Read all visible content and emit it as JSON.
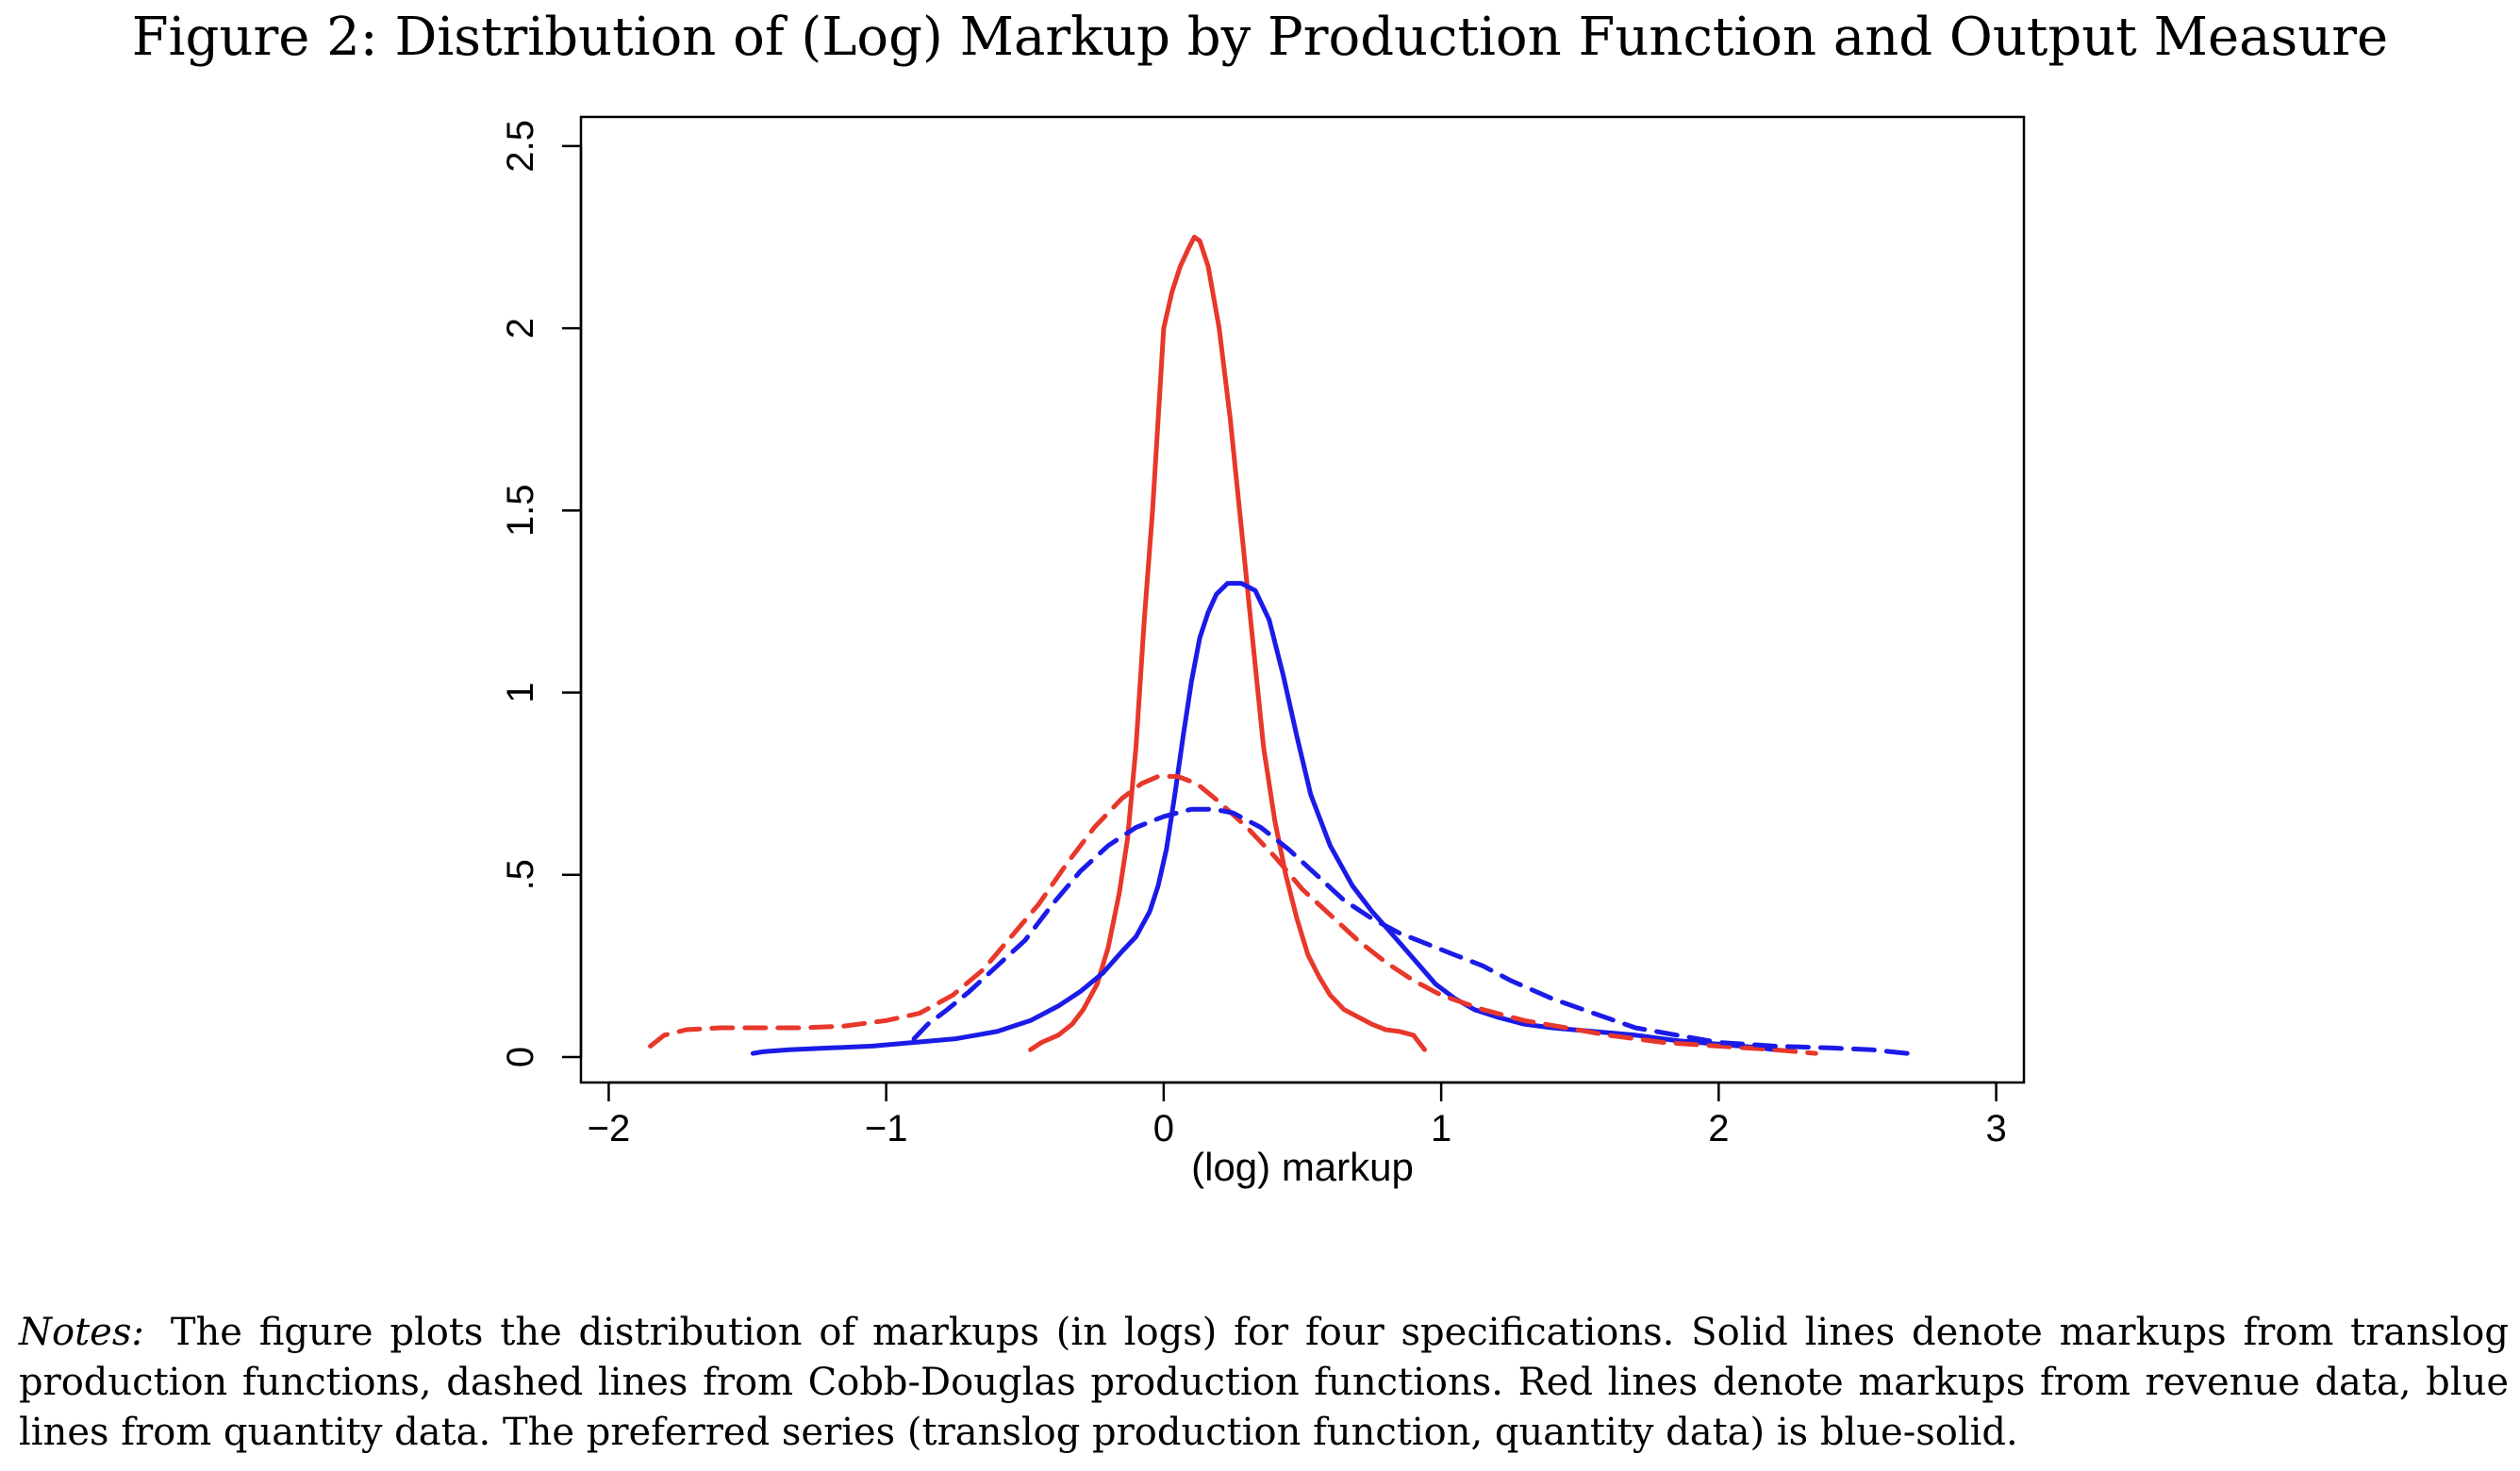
{
  "figure": {
    "title": "Figure 2: Distribution of (Log) Markup by Production Function and Output Measure",
    "notes_label": "Notes:",
    "notes_text": "The figure plots the distribution of markups (in logs) for four specifications. Solid lines denote markups from translog production functions, dashed lines from Cobb-Douglas production functions. Red lines denote markups from revenue data, blue lines from quantity data. The preferred series (translog production function, quantity data) is blue-solid."
  },
  "chart_data": {
    "type": "line",
    "title": "Figure 2: Distribution of (Log) Markup by Production Function and Output Measure",
    "xlabel": "(log) markup",
    "ylabel": "",
    "xlim": [
      -2.1,
      3.1
    ],
    "ylim": [
      -0.07,
      2.58
    ],
    "x_ticks": [
      -2,
      -1,
      0,
      1,
      2,
      3
    ],
    "x_tick_labels": [
      "−2",
      "−1",
      "0",
      "1",
      "2",
      "3"
    ],
    "y_ticks": [
      0,
      0.5,
      1,
      1.5,
      2,
      2.5
    ],
    "y_tick_labels": [
      "0",
      ".5",
      "1",
      "1.5",
      "2",
      "2.5"
    ],
    "grid": false,
    "legend": "none",
    "series": [
      {
        "color": "#e8372b",
        "style": "solid",
        "points": [
          [
            -0.48,
            0.02
          ],
          [
            -0.44,
            0.04
          ],
          [
            -0.38,
            0.06
          ],
          [
            -0.33,
            0.09
          ],
          [
            -0.29,
            0.13
          ],
          [
            -0.24,
            0.2
          ],
          [
            -0.2,
            0.3
          ],
          [
            -0.16,
            0.45
          ],
          [
            -0.13,
            0.6
          ],
          [
            -0.1,
            0.85
          ],
          [
            -0.07,
            1.2
          ],
          [
            -0.04,
            1.5
          ],
          [
            -0.02,
            1.75
          ],
          [
            0.0,
            2.0
          ],
          [
            0.03,
            2.1
          ],
          [
            0.06,
            2.17
          ],
          [
            0.09,
            2.22
          ],
          [
            0.11,
            2.25
          ],
          [
            0.13,
            2.24
          ],
          [
            0.16,
            2.17
          ],
          [
            0.2,
            2.0
          ],
          [
            0.24,
            1.75
          ],
          [
            0.28,
            1.45
          ],
          [
            0.32,
            1.15
          ],
          [
            0.36,
            0.85
          ],
          [
            0.4,
            0.65
          ],
          [
            0.44,
            0.5
          ],
          [
            0.48,
            0.38
          ],
          [
            0.52,
            0.28
          ],
          [
            0.56,
            0.22
          ],
          [
            0.6,
            0.17
          ],
          [
            0.65,
            0.13
          ],
          [
            0.7,
            0.11
          ],
          [
            0.75,
            0.09
          ],
          [
            0.8,
            0.075
          ],
          [
            0.85,
            0.07
          ],
          [
            0.9,
            0.06
          ],
          [
            0.92,
            0.04
          ],
          [
            0.94,
            0.02
          ]
        ]
      },
      {
        "color": "#1b1be8",
        "style": "solid",
        "points": [
          [
            -1.48,
            0.01
          ],
          [
            -1.44,
            0.015
          ],
          [
            -1.35,
            0.02
          ],
          [
            -1.2,
            0.025
          ],
          [
            -1.05,
            0.03
          ],
          [
            -0.9,
            0.04
          ],
          [
            -0.75,
            0.05
          ],
          [
            -0.6,
            0.07
          ],
          [
            -0.48,
            0.1
          ],
          [
            -0.38,
            0.14
          ],
          [
            -0.3,
            0.18
          ],
          [
            -0.22,
            0.23
          ],
          [
            -0.15,
            0.29
          ],
          [
            -0.1,
            0.33
          ],
          [
            -0.05,
            0.4
          ],
          [
            -0.02,
            0.47
          ],
          [
            0.01,
            0.57
          ],
          [
            0.04,
            0.72
          ],
          [
            0.07,
            0.88
          ],
          [
            0.1,
            1.03
          ],
          [
            0.13,
            1.15
          ],
          [
            0.16,
            1.22
          ],
          [
            0.19,
            1.27
          ],
          [
            0.23,
            1.3
          ],
          [
            0.28,
            1.3
          ],
          [
            0.33,
            1.28
          ],
          [
            0.38,
            1.2
          ],
          [
            0.43,
            1.05
          ],
          [
            0.48,
            0.88
          ],
          [
            0.53,
            0.72
          ],
          [
            0.6,
            0.58
          ],
          [
            0.68,
            0.47
          ],
          [
            0.75,
            0.4
          ],
          [
            0.82,
            0.34
          ],
          [
            0.9,
            0.27
          ],
          [
            0.98,
            0.2
          ],
          [
            1.05,
            0.16
          ],
          [
            1.12,
            0.13
          ],
          [
            1.2,
            0.11
          ],
          [
            1.3,
            0.09
          ],
          [
            1.4,
            0.08
          ],
          [
            1.55,
            0.07
          ],
          [
            1.7,
            0.06
          ],
          [
            1.85,
            0.045
          ],
          [
            2.0,
            0.035
          ],
          [
            2.15,
            0.025
          ],
          [
            2.2,
            0.02
          ]
        ]
      },
      {
        "color": "#e8372b",
        "style": "dashed",
        "points": [
          [
            -1.85,
            0.03
          ],
          [
            -1.8,
            0.06
          ],
          [
            -1.72,
            0.075
          ],
          [
            -1.6,
            0.08
          ],
          [
            -1.45,
            0.08
          ],
          [
            -1.3,
            0.08
          ],
          [
            -1.15,
            0.085
          ],
          [
            -1.0,
            0.1
          ],
          [
            -0.88,
            0.12
          ],
          [
            -0.76,
            0.17
          ],
          [
            -0.65,
            0.24
          ],
          [
            -0.55,
            0.33
          ],
          [
            -0.45,
            0.42
          ],
          [
            -0.35,
            0.53
          ],
          [
            -0.25,
            0.63
          ],
          [
            -0.15,
            0.71
          ],
          [
            -0.08,
            0.75
          ],
          [
            -0.02,
            0.77
          ],
          [
            0.05,
            0.77
          ],
          [
            0.12,
            0.75
          ],
          [
            0.2,
            0.7
          ],
          [
            0.3,
            0.63
          ],
          [
            0.4,
            0.55
          ],
          [
            0.5,
            0.46
          ],
          [
            0.6,
            0.39
          ],
          [
            0.7,
            0.32
          ],
          [
            0.8,
            0.26
          ],
          [
            0.9,
            0.21
          ],
          [
            1.0,
            0.17
          ],
          [
            1.15,
            0.13
          ],
          [
            1.3,
            0.1
          ],
          [
            1.45,
            0.08
          ],
          [
            1.6,
            0.06
          ],
          [
            1.8,
            0.04
          ],
          [
            2.0,
            0.03
          ],
          [
            2.2,
            0.02
          ],
          [
            2.35,
            0.01
          ]
        ]
      },
      {
        "color": "#1b1be8",
        "style": "dashed",
        "points": [
          [
            -0.9,
            0.05
          ],
          [
            -0.85,
            0.09
          ],
          [
            -0.78,
            0.13
          ],
          [
            -0.7,
            0.18
          ],
          [
            -0.6,
            0.25
          ],
          [
            -0.5,
            0.32
          ],
          [
            -0.4,
            0.42
          ],
          [
            -0.3,
            0.51
          ],
          [
            -0.2,
            0.58
          ],
          [
            -0.1,
            0.63
          ],
          [
            0.0,
            0.66
          ],
          [
            0.1,
            0.68
          ],
          [
            0.18,
            0.68
          ],
          [
            0.25,
            0.67
          ],
          [
            0.35,
            0.63
          ],
          [
            0.45,
            0.57
          ],
          [
            0.55,
            0.5
          ],
          [
            0.65,
            0.43
          ],
          [
            0.75,
            0.38
          ],
          [
            0.85,
            0.34
          ],
          [
            0.95,
            0.31
          ],
          [
            1.05,
            0.28
          ],
          [
            1.15,
            0.25
          ],
          [
            1.25,
            0.21
          ],
          [
            1.4,
            0.16
          ],
          [
            1.55,
            0.12
          ],
          [
            1.7,
            0.08
          ],
          [
            1.85,
            0.06
          ],
          [
            2.0,
            0.04
          ],
          [
            2.2,
            0.03
          ],
          [
            2.4,
            0.025
          ],
          [
            2.55,
            0.02
          ],
          [
            2.68,
            0.01
          ]
        ]
      }
    ]
  }
}
